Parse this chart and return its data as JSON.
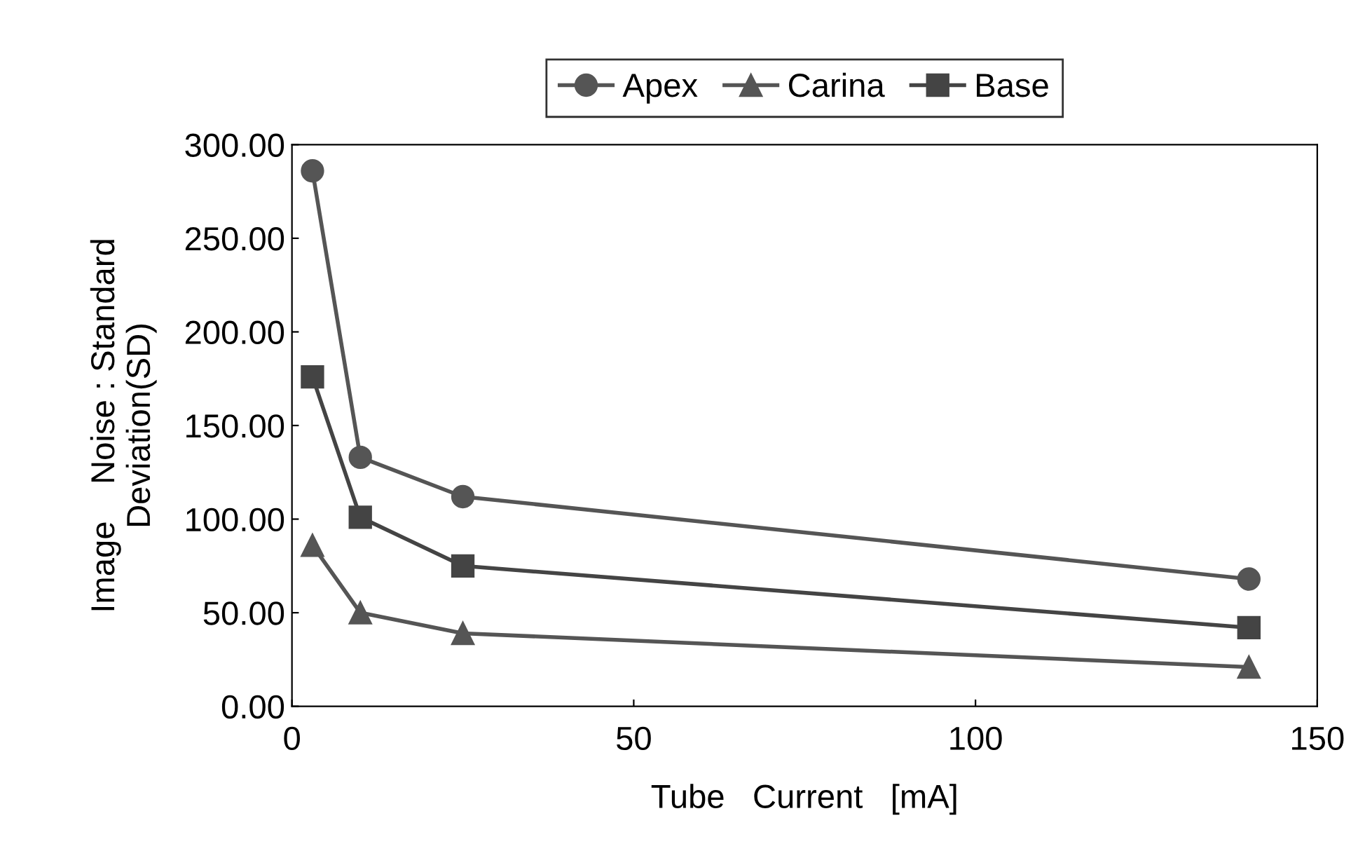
{
  "chart_data": {
    "type": "line",
    "xlabel": "Tube   Current   [mA]",
    "ylabel": "Image    Noise : Standard\nDeviation(SD)",
    "x": [
      3,
      10,
      25,
      140
    ],
    "series": [
      {
        "name": "Apex",
        "color": "#555555",
        "marker": "circle",
        "values": [
          286,
          133,
          112,
          68
        ]
      },
      {
        "name": "Carina",
        "color": "#555555",
        "marker": "triangle",
        "values": [
          86,
          50,
          39,
          21
        ]
      },
      {
        "name": "Base",
        "color": "#444444",
        "marker": "square",
        "values": [
          176,
          101,
          75,
          42
        ]
      }
    ],
    "xlim": [
      0,
      150
    ],
    "xticks": [
      0,
      50,
      100,
      150
    ],
    "ylim": [
      0,
      300
    ],
    "yticks": [
      {
        "value": 0,
        "label": "0.00"
      },
      {
        "value": 50,
        "label": "50.00"
      },
      {
        "value": 100,
        "label": "100.00"
      },
      {
        "value": 150,
        "label": "150.00"
      },
      {
        "value": 200,
        "label": "200.00"
      },
      {
        "value": 250,
        "label": "250.00"
      },
      {
        "value": 300,
        "label": "300.00"
      }
    ],
    "grid": false,
    "legend": "top",
    "line_style": "solid"
  }
}
